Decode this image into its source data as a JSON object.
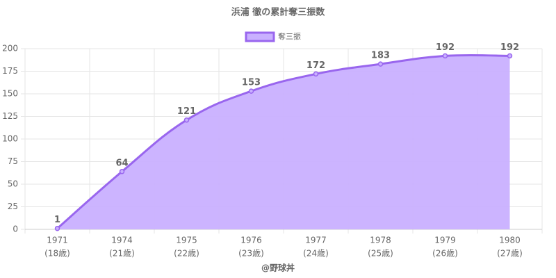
{
  "chart_data": {
    "type": "line",
    "title": "浜浦 徹の累計奪三振数",
    "categories": [
      [
        "1971",
        "(18歳)"
      ],
      [
        "1974",
        "(21歳)"
      ],
      [
        "1975",
        "(22歳)"
      ],
      [
        "1976",
        "(23歳)"
      ],
      [
        "1977",
        "(24歳)"
      ],
      [
        "1978",
        "(25歳)"
      ],
      [
        "1979",
        "(26歳)"
      ],
      [
        "1980",
        "(27歳)"
      ]
    ],
    "series": [
      {
        "name": "奪三振",
        "color": "#9966ee",
        "fill": "#c9b0ff",
        "values": [
          1,
          64,
          121,
          153,
          172,
          183,
          192,
          192
        ]
      }
    ],
    "ylim": [
      0,
      200
    ],
    "yticks": [
      0,
      25,
      50,
      75,
      100,
      125,
      150,
      175,
      200
    ],
    "grid": true,
    "legend": "top",
    "source": "@野球丼"
  }
}
